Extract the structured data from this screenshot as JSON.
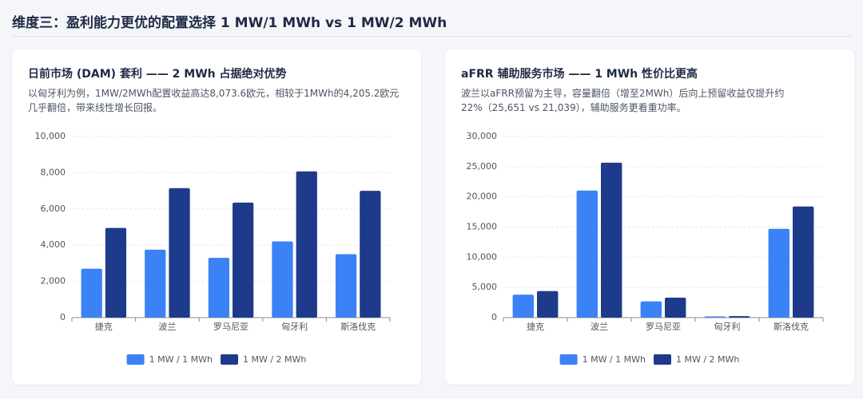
{
  "title": "维度三：盈利能力更优的配置选择 1 MW/1 MWh vs 1 MW/2 MWh",
  "chart_data": [
    {
      "type": "bar",
      "title": "日前市场 (DAM) 套利 —— 2 MWh 占据绝对优势",
      "subtitle": "以匈牙利为例，1MW/2MWh配置收益高达8,073.6欧元，相较于1MWh的4,205.2欧元几乎翻倍，带来线性增长回报。",
      "categories": [
        "捷克",
        "波兰",
        "罗马尼亚",
        "匈牙利",
        "斯洛伐克"
      ],
      "series": [
        {
          "name": "1 MW / 1 MWh",
          "color": "#3b82f6",
          "values": [
            2700,
            3750,
            3300,
            4205.2,
            3500
          ]
        },
        {
          "name": "1 MW / 2 MWh",
          "color": "#1e3a8a",
          "values": [
            4950,
            7150,
            6350,
            8073.6,
            7000
          ]
        }
      ],
      "ylim": [
        0,
        10000
      ],
      "yticks": [
        0,
        {
          "value": 2000,
          "label": "2,000"
        },
        {
          "value": 4000,
          "label": "4,000"
        },
        {
          "value": 6000,
          "label": "6,000"
        },
        {
          "value": 8000,
          "label": "8,000"
        },
        {
          "value": 10000,
          "label": "10,000"
        }
      ],
      "grid": true,
      "legend": "bottom"
    },
    {
      "type": "bar",
      "title": "aFRR 辅助服务市场 —— 1 MWh 性价比更高",
      "subtitle": "波兰以aFRR预留为主导，容量翻倍（增至2MWh）后向上预留收益仅提升约22%（25,651 vs 21,039），辅助服务更看重功率。",
      "categories": [
        "捷克",
        "波兰",
        "罗马尼亚",
        "匈牙利",
        "斯洛伐克"
      ],
      "series": [
        {
          "name": "1 MW / 1 MWh",
          "color": "#3b82f6",
          "values": [
            3800,
            21039,
            2700,
            200,
            14700
          ]
        },
        {
          "name": "1 MW / 2 MWh",
          "color": "#1e3a8a",
          "values": [
            4400,
            25651,
            3300,
            250,
            18400
          ]
        }
      ],
      "ylim": [
        0,
        30000
      ],
      "yticks": [
        0,
        {
          "value": 5000,
          "label": "5,000"
        },
        {
          "value": 10000,
          "label": "10,000"
        },
        {
          "value": 15000,
          "label": "15,000"
        },
        {
          "value": 20000,
          "label": "20,000"
        },
        {
          "value": 25000,
          "label": "25,000"
        },
        {
          "value": 30000,
          "label": "30,000"
        }
      ],
      "grid": true,
      "legend": "bottom"
    }
  ]
}
